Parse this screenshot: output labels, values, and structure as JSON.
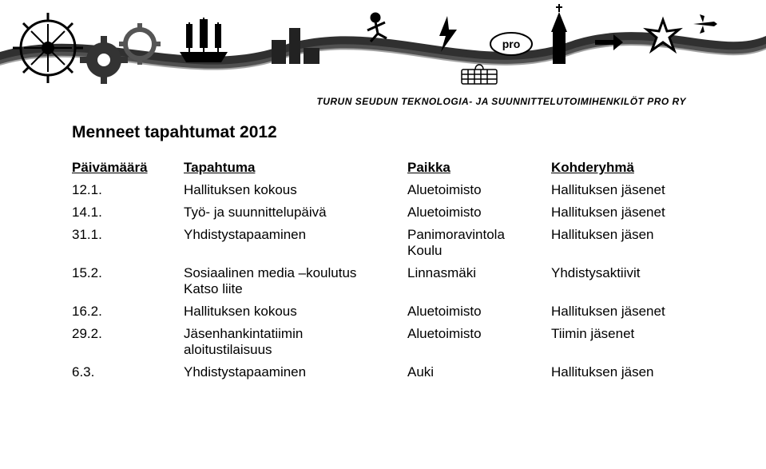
{
  "org_name": "TURUN SEUDUN TEKNOLOGIA- JA SUUNNITTELUTOIMIHENKILÖT PRO RY",
  "page_title": "Menneet tapahtumat 2012",
  "table": {
    "columns": [
      "Päivämäärä",
      "Tapahtuma",
      "Paikka",
      "Kohderyhmä"
    ],
    "rows": [
      [
        "12.1.",
        "Hallituksen kokous",
        "Aluetoimisto",
        "Hallituksen jäsenet"
      ],
      [
        "14.1.",
        "Työ- ja suunnittelupäivä",
        "Aluetoimisto",
        "Hallituksen jäsenet"
      ],
      [
        "31.1.",
        "Yhdistystapaaminen",
        "Panimoravintola\nKoulu",
        "Hallituksen jäsen"
      ],
      [
        "15.2.",
        "Sosiaalinen media –koulutus\nKatso liite",
        "Linnasmäki",
        "Yhdistysaktiivit"
      ],
      [
        "16.2.",
        "Hallituksen kokous",
        "Aluetoimisto",
        "Hallituksen jäsenet"
      ],
      [
        "29.2.",
        "Jäsenhankintatiimin\naloitustilaisuus",
        "Aluetoimisto",
        "Tiimin jäsenet"
      ],
      [
        "6.3.",
        "Yhdistystapaaminen",
        "Auki",
        "Hallituksen jäsen"
      ]
    ],
    "header_underline": true,
    "font_size": 17,
    "text_color": "#000000"
  },
  "banner": {
    "background": "#ffffff",
    "accent_colors": [
      "#000000",
      "#666666",
      "#999999",
      "#cccccc"
    ]
  }
}
